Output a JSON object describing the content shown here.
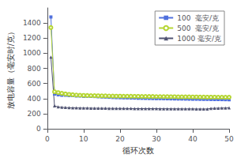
{
  "chart_data": {
    "type": "line",
    "title": "",
    "xlabel": "循环次数",
    "ylabel": "放电容量（毫安时/克）",
    "xlim": [
      0,
      50
    ],
    "ylim": [
      0,
      1600
    ],
    "xticks": [
      0,
      10,
      20,
      30,
      40,
      50
    ],
    "yticks": [
      0,
      200,
      400,
      600,
      800,
      1000,
      1200,
      1400
    ],
    "grid": false,
    "legend": "upper right",
    "x": [
      1,
      2,
      3,
      4,
      5,
      6,
      7,
      8,
      9,
      10,
      11,
      12,
      13,
      14,
      15,
      16,
      17,
      18,
      19,
      20,
      21,
      22,
      23,
      24,
      25,
      26,
      27,
      28,
      29,
      30,
      31,
      32,
      33,
      34,
      35,
      36,
      37,
      38,
      39,
      40,
      41,
      42,
      43,
      44,
      45,
      46,
      47,
      48,
      49,
      50
    ],
    "series": [
      {
        "name": "100  毫安/克",
        "marker": "square",
        "values": [
          1480,
          460,
          450,
          445,
          445,
          440,
          440,
          435,
          435,
          430,
          430,
          430,
          428,
          425,
          422,
          420,
          418,
          415,
          413,
          412,
          410,
          410,
          408,
          407,
          405,
          404,
          403,
          402,
          401,
          400,
          400,
          399,
          398,
          397,
          396,
          395,
          395,
          394,
          393,
          392,
          392,
          391,
          390,
          390,
          389,
          388,
          388,
          387,
          386,
          385
        ]
      },
      {
        "name": "500  毫安/克",
        "marker": "open circle",
        "values": [
          1340,
          490,
          480,
          470,
          462,
          456,
          452,
          448,
          445,
          443,
          441,
          440,
          439,
          438,
          437,
          436,
          435,
          434,
          433,
          433,
          432,
          432,
          431,
          430,
          430,
          429,
          429,
          428,
          428,
          427,
          427,
          426,
          426,
          425,
          425,
          424,
          424,
          423,
          423,
          422,
          422,
          421,
          421,
          420,
          420,
          420,
          419,
          419,
          418,
          418
        ]
      },
      {
        "name": "1000 毫安/克",
        "marker": "triangle",
        "values": [
          950,
          305,
          290,
          285,
          282,
          280,
          278,
          277,
          276,
          275,
          275,
          274,
          273,
          273,
          272,
          272,
          271,
          271,
          270,
          270,
          270,
          269,
          269,
          268,
          268,
          268,
          267,
          267,
          267,
          267,
          266,
          266,
          266,
          265,
          265,
          265,
          264,
          264,
          264,
          264,
          263,
          263,
          263,
          263,
          270,
          272,
          274,
          275,
          276,
          278
        ]
      }
    ]
  }
}
